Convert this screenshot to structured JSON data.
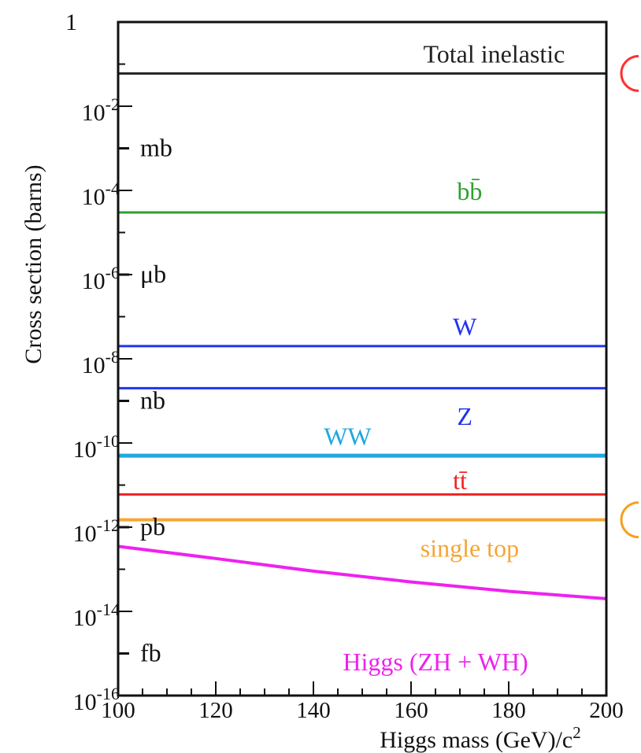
{
  "chart_data": {
    "type": "line",
    "title": "",
    "xlabel": "Higgs mass (GeV)/c",
    "xlabel_sup": "2",
    "ylabel": "Cross section (barns)",
    "xlim": [
      100,
      200
    ],
    "ylim": [
      1e-16,
      1
    ],
    "y_scale": "log",
    "grid": false,
    "x_ticks": [
      {
        "value": 100,
        "label": "100"
      },
      {
        "value": 120,
        "label": "120"
      },
      {
        "value": 140,
        "label": "140"
      },
      {
        "value": 160,
        "label": "160"
      },
      {
        "value": 180,
        "label": "180"
      },
      {
        "value": 200,
        "label": "200"
      }
    ],
    "y_ticks": [
      {
        "value": 1,
        "base": "1",
        "exp": ""
      },
      {
        "value": 0.01,
        "base": "10",
        "exp": "-2"
      },
      {
        "value": 0.0001,
        "base": "10",
        "exp": "-4"
      },
      {
        "value": 1e-06,
        "base": "10",
        "exp": "-6"
      },
      {
        "value": 1e-08,
        "base": "10",
        "exp": "-8"
      },
      {
        "value": 1e-10,
        "base": "10",
        "exp": "-10"
      },
      {
        "value": 1e-12,
        "base": "10",
        "exp": "-12"
      },
      {
        "value": 1e-14,
        "base": "10",
        "exp": "-14"
      },
      {
        "value": 1e-16,
        "base": "10",
        "exp": "-16"
      }
    ],
    "unit_marks": [
      {
        "value": 0.001,
        "label": "mb"
      },
      {
        "value": 1e-06,
        "label": "μb"
      },
      {
        "value": 1e-09,
        "label": "nb"
      },
      {
        "value": 1e-12,
        "label": "pb"
      },
      {
        "value": 1e-15,
        "label": "fb"
      }
    ],
    "series": [
      {
        "name": "Total inelastic",
        "color": "#222222",
        "width": 3,
        "x": [
          100,
          200
        ],
        "y": [
          0.06,
          0.06
        ],
        "label_x": 177,
        "label_y": 0.11
      },
      {
        "name": "bb̄",
        "color": "#2ea02e",
        "width": 3,
        "x": [
          100,
          200
        ],
        "y": [
          3e-05,
          3e-05
        ],
        "label_x": 172,
        "label_y": 6e-05
      },
      {
        "name": "W",
        "color": "#2233ee",
        "width": 3,
        "x": [
          100,
          200
        ],
        "y": [
          2e-08,
          2e-08
        ],
        "label_x": 171,
        "label_y": 3.6e-08
      },
      {
        "name": "Z",
        "color": "#2233ee",
        "width": 3,
        "x": [
          100,
          200
        ],
        "y": [
          2e-09,
          2e-09
        ],
        "label_x": 171,
        "label_y": 2.7e-10
      },
      {
        "name": "WW",
        "color": "#1fa8e0",
        "width": 5,
        "x": [
          100,
          200
        ],
        "y": [
          5e-11,
          5e-11
        ],
        "label_x": 147,
        "label_y": 9e-11
      },
      {
        "name": "tt̄",
        "color": "#ee2222",
        "width": 3,
        "x": [
          100,
          200
        ],
        "y": [
          6e-12,
          6e-12
        ],
        "label_x": 170,
        "label_y": 8e-12
      },
      {
        "name": "single top",
        "color": "#f5a533",
        "width": 4,
        "x": [
          100,
          200
        ],
        "y": [
          1.5e-12,
          1.5e-12
        ],
        "label_x": 172,
        "label_y": 2e-13
      },
      {
        "name": "Higgs (ZH + WH)",
        "color": "#ee22ee",
        "width": 4,
        "x": [
          100,
          120,
          140,
          160,
          180,
          200
        ],
        "y": [
          3.5e-13,
          1.8e-13,
          9e-14,
          5e-14,
          3e-14,
          2e-14
        ],
        "label_x": 165,
        "label_y": 4e-16
      }
    ],
    "markers": [
      {
        "shape": "arc",
        "color": "#ff3030",
        "y": 0.06
      },
      {
        "shape": "arc",
        "color": "#f5a020",
        "y": 1.5e-12
      }
    ]
  }
}
